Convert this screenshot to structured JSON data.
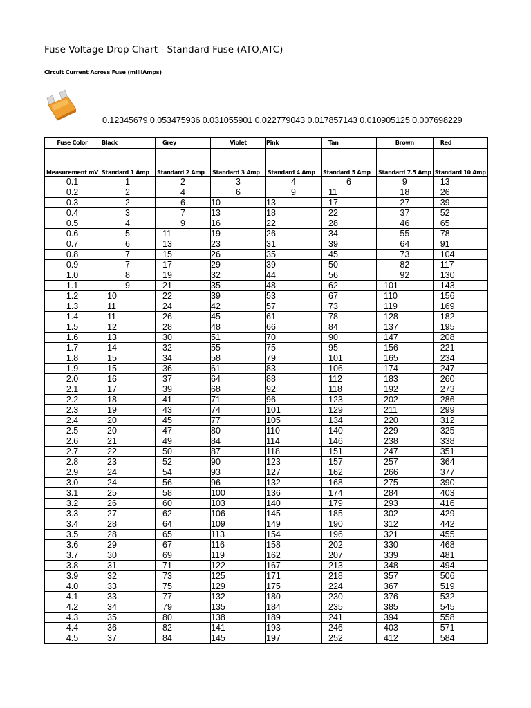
{
  "title": "Fuse Voltage Drop Chart - Standard Fuse (ATO,ATC)",
  "subtitle": "Circuit Current Across Fuse (milliAmps)",
  "fuse_image": {
    "icon": "orange-blade-fuse",
    "color": "#f0a030"
  },
  "ratios": "0.12345679 0.053475936 0.031055901 0.022779043 0.017857143 0.010905125 0.007698229",
  "table": {
    "color_header": [
      "Fuse Color",
      "Black",
      "Grey",
      "Violet",
      "Pink",
      "Tan",
      "Brown",
      "Red"
    ],
    "rating_header": [
      "Measurement mV",
      "Standard 1 Amp",
      "Standard 2 Amp",
      "Standard 3 Amp",
      "Standard 4 Amp",
      "Standard 5 Amp",
      "Standard 7.5 Amp",
      "Standard 10 Amp"
    ],
    "rows": [
      [
        "0.1",
        "1",
        "2",
        "3",
        "4",
        "6",
        "9",
        "13"
      ],
      [
        "0.2",
        "2",
        "4",
        "6",
        "9",
        "11",
        "18",
        "26"
      ],
      [
        "0.3",
        "2",
        "6",
        "10",
        "13",
        "17",
        "27",
        "39"
      ],
      [
        "0.4",
        "3",
        "7",
        "13",
        "18",
        "22",
        "37",
        "52"
      ],
      [
        "0.5",
        "4",
        "9",
        "16",
        "22",
        "28",
        "46",
        "65"
      ],
      [
        "0.6",
        "5",
        "11",
        "19",
        "26",
        "34",
        "55",
        "78"
      ],
      [
        "0.7",
        "6",
        "13",
        "23",
        "31",
        "39",
        "64",
        "91"
      ],
      [
        "0.8",
        "7",
        "15",
        "26",
        "35",
        "45",
        "73",
        "104"
      ],
      [
        "0.9",
        "7",
        "17",
        "29",
        "39",
        "50",
        "82",
        "117"
      ],
      [
        "1.0",
        "8",
        "19",
        "32",
        "44",
        "56",
        "92",
        "130"
      ],
      [
        "1.1",
        "9",
        "21",
        "35",
        "48",
        "62",
        "101",
        "143"
      ],
      [
        "1.2",
        "10",
        "22",
        "39",
        "53",
        "67",
        "110",
        "156"
      ],
      [
        "1.3",
        "11",
        "24",
        "42",
        "57",
        "73",
        "119",
        "169"
      ],
      [
        "1.4",
        "11",
        "26",
        "45",
        "61",
        "78",
        "128",
        "182"
      ],
      [
        "1.5",
        "12",
        "28",
        "48",
        "66",
        "84",
        "137",
        "195"
      ],
      [
        "1.6",
        "13",
        "30",
        "51",
        "70",
        "90",
        "147",
        "208"
      ],
      [
        "1.7",
        "14",
        "32",
        "55",
        "75",
        "95",
        "156",
        "221"
      ],
      [
        "1.8",
        "15",
        "34",
        "58",
        "79",
        "101",
        "165",
        "234"
      ],
      [
        "1.9",
        "15",
        "36",
        "61",
        "83",
        "106",
        "174",
        "247"
      ],
      [
        "2.0",
        "16",
        "37",
        "64",
        "88",
        "112",
        "183",
        "260"
      ],
      [
        "2.1",
        "17",
        "39",
        "68",
        "92",
        "118",
        "192",
        "273"
      ],
      [
        "2.2",
        "18",
        "41",
        "71",
        "96",
        "123",
        "202",
        "286"
      ],
      [
        "2.3",
        "19",
        "43",
        "74",
        "101",
        "129",
        "211",
        "299"
      ],
      [
        "2.4",
        "20",
        "45",
        "77",
        "105",
        "134",
        "220",
        "312"
      ],
      [
        "2.5",
        "20",
        "47",
        "80",
        "110",
        "140",
        "229",
        "325"
      ],
      [
        "2.6",
        "21",
        "49",
        "84",
        "114",
        "146",
        "238",
        "338"
      ],
      [
        "2.7",
        "22",
        "50",
        "87",
        "118",
        "151",
        "247",
        "351"
      ],
      [
        "2.8",
        "23",
        "52",
        "90",
        "123",
        "157",
        "257",
        "364"
      ],
      [
        "2.9",
        "24",
        "54",
        "93",
        "127",
        "162",
        "266",
        "377"
      ],
      [
        "3.0",
        "24",
        "56",
        "96",
        "132",
        "168",
        "275",
        "390"
      ],
      [
        "3.1",
        "25",
        "58",
        "100",
        "136",
        "174",
        "284",
        "403"
      ],
      [
        "3.2",
        "26",
        "60",
        "103",
        "140",
        "179",
        "293",
        "416"
      ],
      [
        "3.3",
        "27",
        "62",
        "106",
        "145",
        "185",
        "302",
        "429"
      ],
      [
        "3.4",
        "28",
        "64",
        "109",
        "149",
        "190",
        "312",
        "442"
      ],
      [
        "3.5",
        "28",
        "65",
        "113",
        "154",
        "196",
        "321",
        "455"
      ],
      [
        "3.6",
        "29",
        "67",
        "116",
        "158",
        "202",
        "330",
        "468"
      ],
      [
        "3.7",
        "30",
        "69",
        "119",
        "162",
        "207",
        "339",
        "481"
      ],
      [
        "3.8",
        "31",
        "71",
        "122",
        "167",
        "213",
        "348",
        "494"
      ],
      [
        "3.9",
        "32",
        "73",
        "125",
        "171",
        "218",
        "357",
        "506"
      ],
      [
        "4.0",
        "33",
        "75",
        "129",
        "175",
        "224",
        "367",
        "519"
      ],
      [
        "4.1",
        "33",
        "77",
        "132",
        "180",
        "230",
        "376",
        "532"
      ],
      [
        "4.2",
        "34",
        "79",
        "135",
        "184",
        "235",
        "385",
        "545"
      ],
      [
        "4.3",
        "35",
        "80",
        "138",
        "189",
        "241",
        "394",
        "558"
      ],
      [
        "4.4",
        "36",
        "82",
        "141",
        "193",
        "246",
        "403",
        "571"
      ],
      [
        "4.5",
        "37",
        "84",
        "145",
        "197",
        "252",
        "412",
        "584"
      ]
    ]
  }
}
